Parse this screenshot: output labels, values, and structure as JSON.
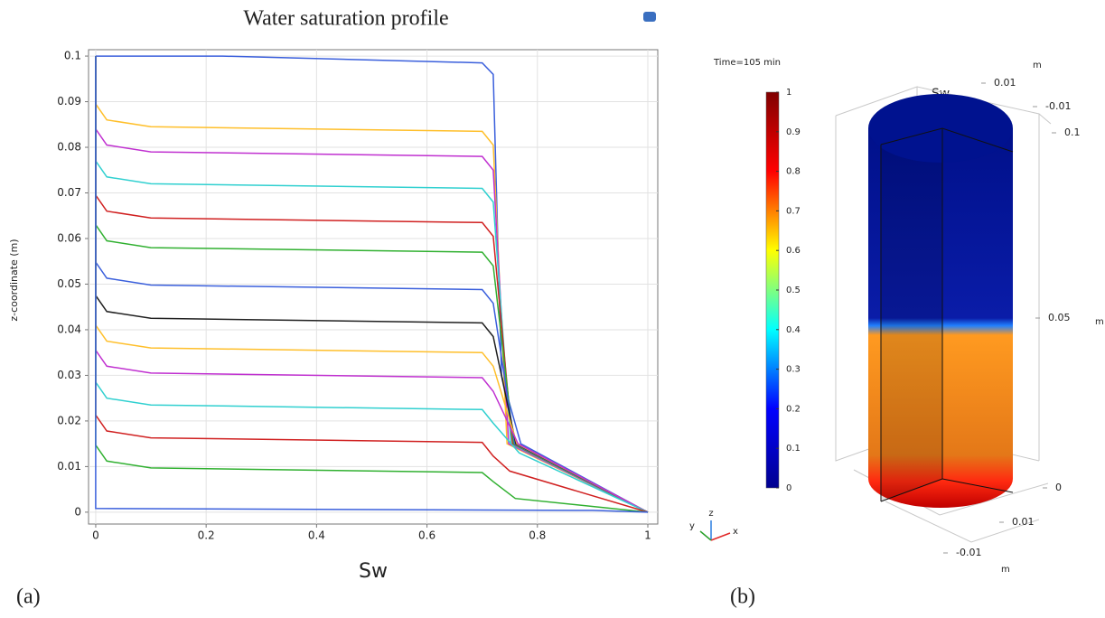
{
  "chart_data": [
    {
      "type": "line",
      "title": "Water saturation profile",
      "xlabel": "Sw",
      "ylabel": "z-coordinate (m)",
      "panel_label": "(a)",
      "xlim": [
        -0.013,
        1.018
      ],
      "ylim": [
        -0.0026,
        0.1014
      ],
      "xticks": [
        0,
        0.2,
        0.4,
        0.6,
        0.8,
        1
      ],
      "yticks": [
        0,
        0.01,
        0.02,
        0.03,
        0.04,
        0.05,
        0.06,
        0.07,
        0.08,
        0.09,
        0.1
      ],
      "grid": true,
      "series": [
        {
          "color": "#3a5fdc",
          "x": [
            0,
            0.23,
            0.7,
            0.72,
            0.735,
            0.77,
            1
          ],
          "values": [
            0.1,
            0.1,
            0.0985,
            0.096,
            0.03,
            0.015,
            0
          ]
        },
        {
          "color": "#ffbf2a",
          "x": [
            0,
            0,
            0.02,
            0.1,
            0.7,
            0.72,
            0.745,
            1
          ],
          "values": [
            0.1,
            0.0895,
            0.086,
            0.0845,
            0.0835,
            0.0805,
            0.015,
            0
          ]
        },
        {
          "color": "#c030d0",
          "x": [
            0,
            0,
            0.02,
            0.1,
            0.7,
            0.72,
            0.748,
            1
          ],
          "values": [
            0.1,
            0.084,
            0.0805,
            0.079,
            0.078,
            0.075,
            0.015,
            0
          ]
        },
        {
          "color": "#30d0d0",
          "x": [
            0,
            0,
            0.02,
            0.1,
            0.7,
            0.72,
            0.752,
            1
          ],
          "values": [
            0.1,
            0.077,
            0.0735,
            0.072,
            0.071,
            0.068,
            0.015,
            0
          ]
        },
        {
          "color": "#d02020",
          "x": [
            0,
            0,
            0.02,
            0.1,
            0.7,
            0.72,
            0.755,
            1
          ],
          "values": [
            0.1,
            0.0695,
            0.066,
            0.0645,
            0.0635,
            0.0605,
            0.015,
            0
          ]
        },
        {
          "color": "#30b030",
          "x": [
            0,
            0,
            0.02,
            0.1,
            0.7,
            0.72,
            0.757,
            1
          ],
          "values": [
            0.1,
            0.063,
            0.0595,
            0.058,
            0.057,
            0.054,
            0.015,
            0
          ]
        },
        {
          "color": "#3a5fdc",
          "x": [
            0,
            0,
            0.02,
            0.1,
            0.7,
            0.72,
            0.759,
            1
          ],
          "values": [
            0.1,
            0.0548,
            0.0513,
            0.0498,
            0.0488,
            0.0458,
            0.015,
            0
          ]
        },
        {
          "color": "#202020",
          "x": [
            0,
            0,
            0.02,
            0.1,
            0.7,
            0.72,
            0.761,
            1
          ],
          "values": [
            0.1,
            0.0475,
            0.044,
            0.0425,
            0.0415,
            0.0385,
            0.015,
            0
          ]
        },
        {
          "color": "#ffbf2a",
          "x": [
            0,
            0,
            0.02,
            0.1,
            0.7,
            0.72,
            0.763,
            1
          ],
          "values": [
            0.1,
            0.041,
            0.0375,
            0.036,
            0.035,
            0.032,
            0.015,
            0
          ]
        },
        {
          "color": "#c030d0",
          "x": [
            0,
            0,
            0.02,
            0.1,
            0.7,
            0.72,
            0.765,
            1
          ],
          "values": [
            0.1,
            0.0355,
            0.032,
            0.0305,
            0.0295,
            0.0265,
            0.015,
            0
          ]
        },
        {
          "color": "#30d0d0",
          "x": [
            0,
            0,
            0.02,
            0.1,
            0.7,
            0.72,
            0.767,
            1
          ],
          "values": [
            0.1,
            0.0285,
            0.025,
            0.0235,
            0.0225,
            0.0195,
            0.013,
            0
          ]
        },
        {
          "color": "#d02020",
          "x": [
            0,
            0,
            0.02,
            0.1,
            0.7,
            0.72,
            0.75,
            1
          ],
          "values": [
            0.1,
            0.0213,
            0.0178,
            0.0163,
            0.0153,
            0.0123,
            0.009,
            0
          ]
        },
        {
          "color": "#30b030",
          "x": [
            0,
            0,
            0.02,
            0.1,
            0.7,
            0.72,
            0.76,
            1
          ],
          "values": [
            0.1,
            0.0147,
            0.0112,
            0.0097,
            0.0087,
            0.0067,
            0.003,
            0
          ]
        },
        {
          "color": "#3a5fdc",
          "x": [
            0,
            0,
            0.9,
            1
          ],
          "values": [
            0.1,
            0.0008,
            0.0004,
            0
          ]
        }
      ]
    },
    {
      "type": "colorbar",
      "title": "Time=105 min",
      "label": "Sw",
      "panel_label": "(b)",
      "clim": [
        0,
        1
      ],
      "ticks": [
        0,
        0.1,
        0.2,
        0.3,
        0.4,
        0.5,
        0.6,
        0.7,
        0.8,
        0.9,
        1
      ],
      "colormap": [
        "#00008f",
        "#0000ff",
        "#00ffff",
        "#ffff00",
        "#ff0000",
        "#800000"
      ],
      "top_axis": {
        "ticks": [
          0.01,
          -0.01
        ],
        "unit": "m"
      },
      "vertical_axis": {
        "ticks": [
          0.1,
          0.05,
          0
        ],
        "unit": "m"
      },
      "bottom_axis": {
        "ticks": [
          0.01,
          -0.01
        ],
        "unit": "m"
      },
      "triad": [
        "y",
        "z",
        "x"
      ]
    }
  ]
}
